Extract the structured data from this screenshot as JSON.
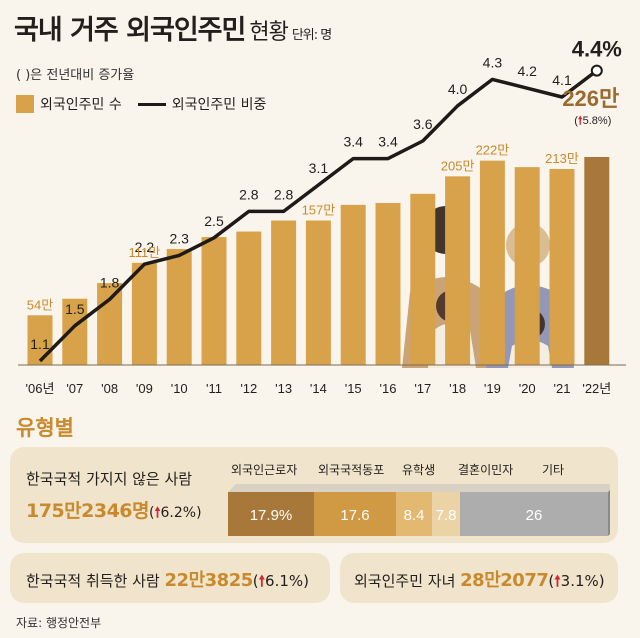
{
  "header": {
    "title": "국내 거주 외국인주민",
    "subtitle": "현황",
    "unit": "단위: 명",
    "note": "( )은 전년대비 증가율"
  },
  "legend": {
    "bar": "외국인주민 수",
    "line": "외국인주민 비중"
  },
  "chart_data": {
    "type": "bar",
    "categories": [
      "'06년",
      "'07",
      "'08",
      "'09",
      "'10",
      "'11",
      "'12",
      "'13",
      "'14",
      "'15",
      "'16",
      "'17",
      "'18",
      "'19",
      "'20",
      "'21",
      "'22년"
    ],
    "series": [
      {
        "name": "외국인주민 수",
        "type": "bar",
        "unit": "만명",
        "values": [
          54,
          72,
          89,
          111,
          126,
          139,
          145,
          157,
          157,
          174,
          176,
          186,
          205,
          222,
          215,
          213,
          226
        ]
      },
      {
        "name": "외국인주민 비중",
        "type": "line",
        "unit": "%",
        "values": [
          1.1,
          1.5,
          1.8,
          2.2,
          2.3,
          2.5,
          2.8,
          2.8,
          3.1,
          3.4,
          3.4,
          3.6,
          4.0,
          4.3,
          4.2,
          4.1,
          4.4
        ]
      }
    ],
    "bar_labels": {
      "0": "54만",
      "3": "111만",
      "8": "157만",
      "12": "205만",
      "13": "222만",
      "15": "213만"
    },
    "line_labels": [
      "1.1",
      "1.5",
      "1.8",
      "2.2",
      "2.3",
      "2.5",
      "2.8",
      "2.8",
      "3.1",
      "3.4",
      "3.4",
      "3.6",
      "4.0",
      "4.3",
      "4.2",
      "4.1",
      "4.4%"
    ],
    "highlight": {
      "value": "226만",
      "change": "5.8%"
    },
    "colors": {
      "bar": "#d8a24a",
      "bar_highlight": "#a8783a",
      "line": "#1e1a17",
      "label": "#c98a2e"
    }
  },
  "types": {
    "heading": "유형별",
    "non_citizen": {
      "label": "한국국적 가지지 않은 사람",
      "value": "175만2346명",
      "change": "6.2%",
      "breakdown": [
        {
          "name": "외국인근로자",
          "share": 17.9,
          "label": "17.9%",
          "color": "#a8783a"
        },
        {
          "name": "외국국적동포",
          "share": 17.6,
          "label": "17.6",
          "color": "#d09a45"
        },
        {
          "name": "유학생",
          "share": 8.4,
          "label": "8.4",
          "color": "#e3b870"
        },
        {
          "name": "결혼이민자",
          "share": 7.8,
          "label": "7.8",
          "color": "#ecd3a6"
        },
        {
          "name": "기타",
          "share": 26,
          "label": "26",
          "color": "#adadad"
        }
      ]
    },
    "naturalized": {
      "label": "한국국적 취득한 사람",
      "value": "22만3825",
      "change": "6.1%"
    },
    "children": {
      "label": "외국인주민 자녀",
      "value": "28만2077",
      "change": "3.1%"
    }
  },
  "source": "자료: 행정안전부"
}
